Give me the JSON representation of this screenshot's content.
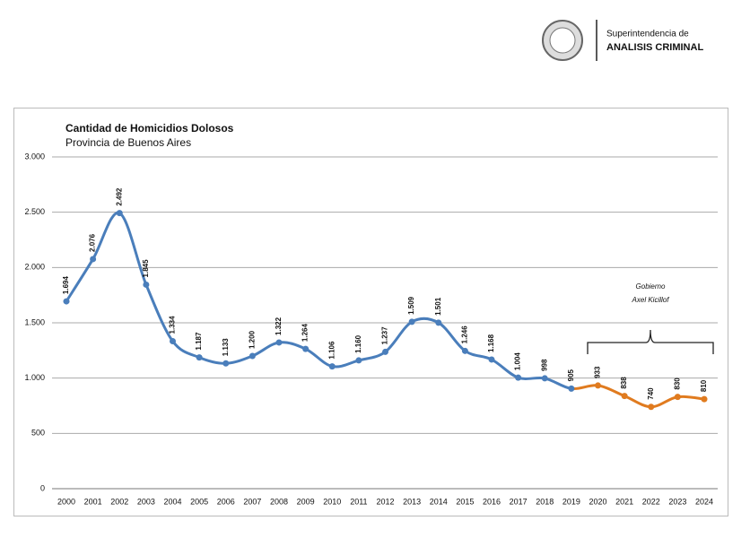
{
  "header": {
    "org_line1": "Superintendencia de",
    "org_line2": "ANALISIS CRIMINAL"
  },
  "chart_data": {
    "type": "line",
    "title": "Cantidad de Homicidios Dolosos",
    "subtitle": "Provincia de Buenos Aires",
    "annotation": [
      "Gobierno",
      "Axel Kicillof"
    ],
    "categories": [
      "2000",
      "2001",
      "2002",
      "2003",
      "2004",
      "2005",
      "2006",
      "2007",
      "2008",
      "2009",
      "2010",
      "2011",
      "2012",
      "2013",
      "2014",
      "2015",
      "2016",
      "2017",
      "2018",
      "2019",
      "2020",
      "2021",
      "2022",
      "2023",
      "2024"
    ],
    "series": [
      {
        "color": "#4a7ebb",
        "values": [
          1694,
          2076,
          2492,
          1845,
          1334,
          1187,
          1133,
          1200,
          1322,
          1264,
          1106,
          1160,
          1237,
          1509,
          1501,
          1246,
          1168,
          1004,
          998,
          905,
          null,
          null,
          null,
          null,
          null
        ],
        "value_labels": [
          "1.694",
          "2.076",
          "2.492",
          "1.845",
          "1.334",
          "1.187",
          "1.133",
          "1.200",
          "1.322",
          "1.264",
          "1.106",
          "1.160",
          "1.237",
          "1.509",
          "1.501",
          "1.246",
          "1.168",
          "1.004",
          "998",
          "905",
          null,
          null,
          null,
          null,
          null
        ]
      },
      {
        "color": "#e07b1f",
        "values": [
          null,
          null,
          null,
          null,
          null,
          null,
          null,
          null,
          null,
          null,
          null,
          null,
          null,
          null,
          null,
          null,
          null,
          null,
          null,
          null,
          933,
          838,
          740,
          830,
          810
        ],
        "value_labels": [
          null,
          null,
          null,
          null,
          null,
          null,
          null,
          null,
          null,
          null,
          null,
          null,
          null,
          null,
          null,
          null,
          null,
          null,
          null,
          null,
          "933",
          "838",
          "740",
          "830",
          "810"
        ]
      }
    ],
    "ylim": [
      0,
      3000
    ],
    "yticks": [
      0,
      500,
      {
        "value": 1000,
        "label": "1.000"
      },
      {
        "value": 1500,
        "label": "1.500"
      },
      {
        "value": 2000,
        "label": "2.000"
      },
      {
        "value": 2500,
        "label": "2.500"
      },
      {
        "value": 3000,
        "label": "3.000"
      }
    ],
    "grid": true
  }
}
